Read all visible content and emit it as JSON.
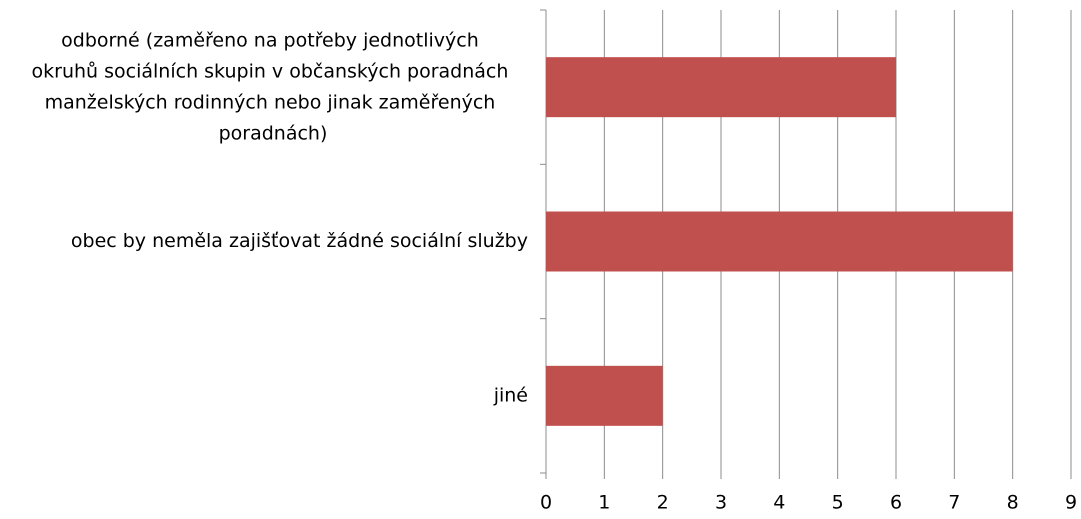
{
  "chart_data": {
    "type": "bar",
    "orientation": "horizontal",
    "categories": [
      "odborné (zaměřeno na potřeby jednotlivých okruhů sociálních skupin v občanských poradnách manželských rodinných nebo jinak zaměřených poradnách)",
      "obec by neměla zajišťovat žádné sociální služby",
      "jiné"
    ],
    "values": [
      6,
      8,
      2
    ],
    "color": "#c0504d",
    "xlim": [
      0,
      9
    ],
    "xticks": [
      0,
      1,
      2,
      3,
      4,
      5,
      6,
      7,
      8,
      9
    ],
    "grid": true
  }
}
